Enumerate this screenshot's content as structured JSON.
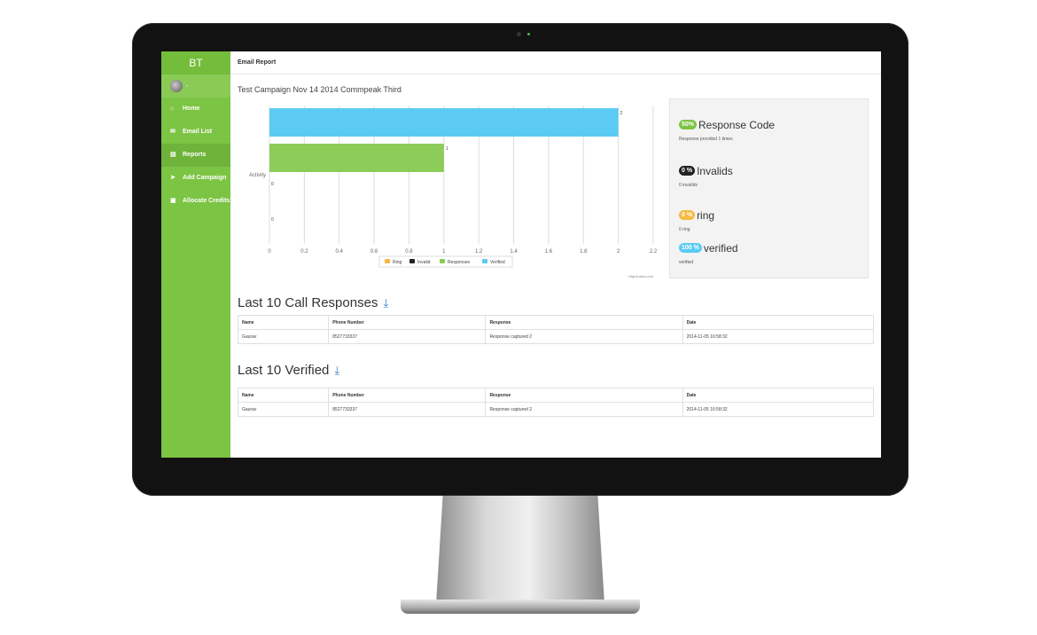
{
  "sidebar": {
    "brand": "BT",
    "profile_name": "-",
    "items": [
      {
        "label": "Home",
        "icon": "home-icon",
        "glyph": "⌂"
      },
      {
        "label": "Email List",
        "icon": "envelope-icon",
        "glyph": "✉"
      },
      {
        "label": "Reports",
        "icon": "file-icon",
        "glyph": "▤"
      },
      {
        "label": "Add Campaign",
        "icon": "bullhorn-icon",
        "glyph": "➤"
      },
      {
        "label": "Allocate Credits",
        "icon": "credits-icon",
        "glyph": "▣"
      }
    ],
    "active_index": 2
  },
  "header": {
    "title": "Email Report"
  },
  "campaign_title": "Test Campaign Nov 14 2014 Commpeak Third",
  "chart_data": {
    "type": "bar",
    "orientation": "horizontal",
    "categories": [
      "Activity"
    ],
    "series": [
      {
        "name": "Verified",
        "value": 2,
        "color": "#5bcbf3"
      },
      {
        "name": "Responses",
        "value": 1,
        "color": "#8ccc59"
      },
      {
        "name": "Invalid",
        "value": 0,
        "color": "#222222"
      },
      {
        "name": "Ring",
        "value": 0,
        "color": "#f5b942"
      }
    ],
    "legend": [
      "Ring",
      "Invalid",
      "Responses",
      "Verified"
    ],
    "legend_colors": [
      "#f5b942",
      "#222222",
      "#8ccc59",
      "#5bcbf3"
    ],
    "x_ticks": [
      "0",
      "0.2",
      "0.4",
      "0.6",
      "0.8",
      "1",
      "1.2",
      "1.4",
      "1.6",
      "1.8",
      "2",
      "2.2"
    ],
    "xlim": [
      0,
      2.2
    ],
    "bar_labels": [
      "2",
      "1",
      "0",
      "0"
    ],
    "credit": "Highcharts.com",
    "legend_position": "bottom"
  },
  "stats": [
    {
      "badge": "50%",
      "badge_color": "#7cc443",
      "label": "Response Code",
      "sub": "Response provided 1 times"
    },
    {
      "badge": "0 %",
      "badge_color": "#222222",
      "label": "Invalids",
      "sub": "0 invalids"
    },
    {
      "badge": "0 %",
      "badge_color": "#f5b942",
      "label": "ring",
      "sub": "0 ring"
    },
    {
      "badge": "100 %",
      "badge_color": "#5bcbf3",
      "label": "verified",
      "sub": "verified"
    }
  ],
  "responses": {
    "title": "Last 10 Call Responses",
    "columns": [
      "Name",
      "Phone Number",
      "Response",
      "Date"
    ],
    "rows": [
      [
        "Gaurav",
        "8527733337",
        "Response captured 2",
        "2014-11-05 16:58:32"
      ]
    ]
  },
  "verified": {
    "title": "Last 10 Verified",
    "columns": [
      "Name",
      "Phone Number",
      "Response",
      "Date"
    ],
    "rows": [
      [
        "Gaurav",
        "8527733337",
        "Response captured 2",
        "2014-11-05 16:58:32"
      ]
    ]
  }
}
